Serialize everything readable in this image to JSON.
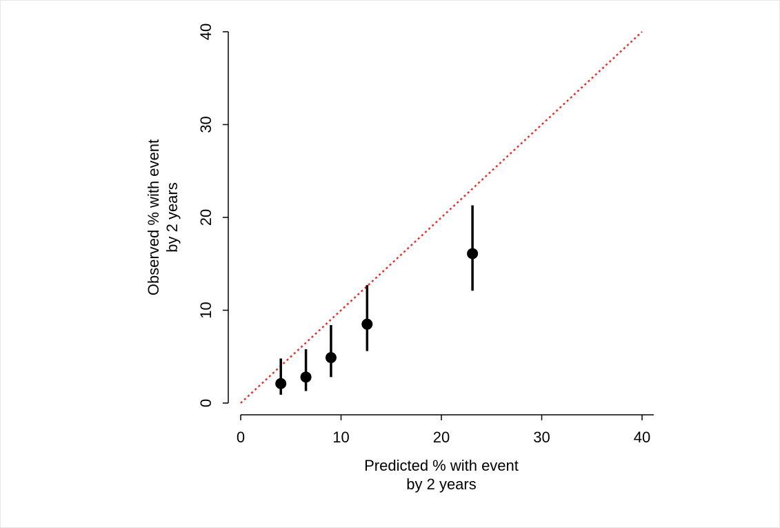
{
  "chart_data": {
    "type": "scatter",
    "xlabel": [
      "Predicted % with event",
      "by 2 years"
    ],
    "ylabel": [
      "Observed % with event",
      "by 2 years"
    ],
    "xlim": [
      0,
      40
    ],
    "ylim": [
      0,
      40
    ],
    "xticks": [
      0,
      10,
      20,
      30,
      40
    ],
    "yticks": [
      0,
      10,
      20,
      30,
      40
    ],
    "series": [
      {
        "color": "#000000",
        "x": [
          4.0,
          6.5,
          9.0,
          12.6,
          23.1
        ],
        "values": [
          2.1,
          2.8,
          4.9,
          8.5,
          16.1
        ],
        "lower": [
          0.9,
          1.3,
          2.8,
          5.6,
          12.1
        ],
        "upper": [
          4.8,
          5.8,
          8.4,
          12.7,
          21.3
        ]
      }
    ],
    "reference_line": {
      "x": [
        0,
        40
      ],
      "values": [
        0,
        40
      ],
      "color": "#e8302a",
      "style": "dotted"
    }
  }
}
